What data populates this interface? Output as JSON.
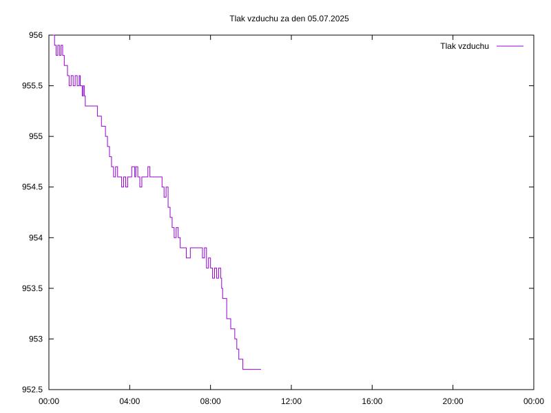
{
  "chart_data": {
    "type": "line",
    "title": "Tlak vzduchu za den 05.07.2025",
    "xlabel": "",
    "ylabel": "",
    "ylim": [
      952.5,
      956
    ],
    "xlim_hours": [
      0,
      24
    ],
    "y_ticks": [
      "952.5",
      "953",
      "953.5",
      "954",
      "954.5",
      "955",
      "955.5",
      "956"
    ],
    "x_ticks": [
      "00:00",
      "04:00",
      "08:00",
      "12:00",
      "16:00",
      "20:00",
      "00:00"
    ],
    "legend_position": "top-right",
    "grid": false,
    "line_color": "#9400d3",
    "series": [
      {
        "name": "Tlak vzduchu",
        "x_hours": [
          0.2,
          0.28,
          0.36,
          0.44,
          0.52,
          0.6,
          0.68,
          0.76,
          0.84,
          0.92,
          1.0,
          1.1,
          1.2,
          1.3,
          1.4,
          1.5,
          1.55,
          1.6,
          1.65,
          1.7,
          1.75,
          1.8,
          1.85,
          1.9,
          1.95,
          2.0,
          2.05,
          2.1,
          2.15,
          2.2,
          2.4,
          2.6,
          2.8,
          2.9,
          3.0,
          3.1,
          3.2,
          3.3,
          3.4,
          3.5,
          3.6,
          3.7,
          3.8,
          3.9,
          4.0,
          4.1,
          4.15,
          4.2,
          4.25,
          4.3,
          4.4,
          4.5,
          4.6,
          4.7,
          4.8,
          4.9,
          5.0,
          5.1,
          5.2,
          5.3,
          5.4,
          5.5,
          5.6,
          5.7,
          5.8,
          5.9,
          6.0,
          6.1,
          6.2,
          6.3,
          6.4,
          6.5,
          6.6,
          6.7,
          6.8,
          6.9,
          7.0,
          7.2,
          7.4,
          7.6,
          7.7,
          7.8,
          7.9,
          8.0,
          8.1,
          8.2,
          8.3,
          8.4,
          8.5,
          8.55,
          8.6,
          8.7,
          8.8,
          8.9,
          9.0,
          9.1,
          9.2,
          9.3,
          9.4,
          9.5,
          9.6,
          9.7,
          9.8,
          9.9,
          10.0,
          10.1,
          10.2,
          10.3,
          10.4,
          10.5
        ],
        "values": [
          956.0,
          955.9,
          955.8,
          955.9,
          955.8,
          955.9,
          955.8,
          955.7,
          955.7,
          955.6,
          955.5,
          955.6,
          955.5,
          955.6,
          955.5,
          955.6,
          955.5,
          955.5,
          955.4,
          955.5,
          955.4,
          955.3,
          955.3,
          955.3,
          955.3,
          955.3,
          955.3,
          955.3,
          955.3,
          955.3,
          955.2,
          955.1,
          955.0,
          954.9,
          954.8,
          954.7,
          954.6,
          954.7,
          954.6,
          954.6,
          954.5,
          954.6,
          954.5,
          954.6,
          954.6,
          954.7,
          954.7,
          954.7,
          954.6,
          954.7,
          954.6,
          954.5,
          954.6,
          954.6,
          954.6,
          954.7,
          954.6,
          954.6,
          954.6,
          954.6,
          954.6,
          954.6,
          954.5,
          954.4,
          954.5,
          954.3,
          954.2,
          954.1,
          954.0,
          954.1,
          954.0,
          953.9,
          953.9,
          953.9,
          953.8,
          953.8,
          953.9,
          953.9,
          953.9,
          953.8,
          953.9,
          953.7,
          953.8,
          953.7,
          953.6,
          953.7,
          953.6,
          953.7,
          953.6,
          953.5,
          953.4,
          953.4,
          953.2,
          953.2,
          953.1,
          953.1,
          953.0,
          952.9,
          952.8,
          952.8,
          952.7,
          952.7,
          952.7,
          952.7,
          952.7,
          952.7,
          952.7,
          952.7,
          952.7,
          952.7
        ]
      }
    ]
  }
}
